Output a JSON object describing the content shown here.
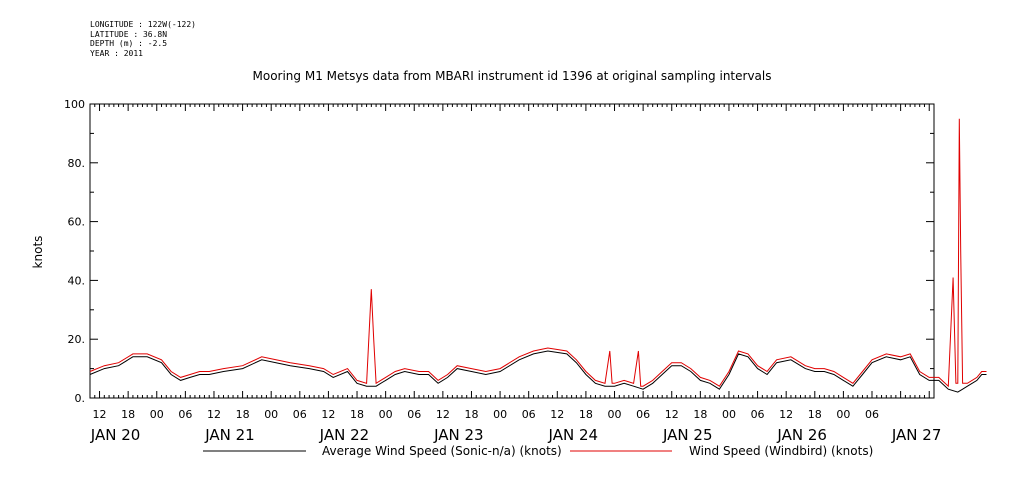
{
  "header": {
    "longitude": "LONGITUDE : 122W(-122)",
    "latitude": "LATITUDE : 36.8N",
    "depth": "DEPTH (m) : -2.5",
    "year": "YEAR : 2011"
  },
  "chart_data": {
    "type": "line",
    "title": "Mooring M1 Metsys data from MBARI instrument id 1396 at original sampling intervals",
    "ylabel": "knots",
    "xlabel": "",
    "ylim": [
      0,
      100
    ],
    "y_ticks": [
      "0.",
      "20.",
      "40.",
      "60.",
      "80.",
      "100"
    ],
    "x_range_hours": [
      -14,
      163
    ],
    "x_hour_ticks": [
      "12",
      "18",
      "00",
      "06",
      "12",
      "18",
      "00",
      "06",
      "12",
      "18",
      "00",
      "06",
      "12",
      "18",
      "00",
      "06",
      "12",
      "18",
      "00",
      "06",
      "12",
      "18",
      "00",
      "06",
      "12",
      "18",
      "00",
      "06"
    ],
    "x_day_labels": [
      "JAN 20",
      "JAN 21",
      "JAN 22",
      "JAN 23",
      "JAN 24",
      "JAN 25",
      "JAN 26",
      "JAN 27"
    ],
    "grid": false,
    "legend_position": "bottom",
    "series": [
      {
        "name": "Average Wind Speed (Sonic-n/a) (knots)",
        "color": "#000000",
        "points": [
          [
            -14,
            8
          ],
          [
            -11,
            10
          ],
          [
            -8,
            11
          ],
          [
            -5,
            14
          ],
          [
            -2,
            14
          ],
          [
            1,
            12
          ],
          [
            3,
            8
          ],
          [
            5,
            6
          ],
          [
            7,
            7
          ],
          [
            9,
            8
          ],
          [
            11,
            8
          ],
          [
            14,
            9
          ],
          [
            18,
            10
          ],
          [
            22,
            13
          ],
          [
            25,
            12
          ],
          [
            28,
            11
          ],
          [
            32,
            10
          ],
          [
            35,
            9
          ],
          [
            37,
            7
          ],
          [
            40,
            9
          ],
          [
            42,
            5
          ],
          [
            44,
            4
          ],
          [
            46,
            4
          ],
          [
            48,
            6
          ],
          [
            50,
            8
          ],
          [
            52,
            9
          ],
          [
            55,
            8
          ],
          [
            57,
            8
          ],
          [
            59,
            5
          ],
          [
            61,
            7
          ],
          [
            63,
            10
          ],
          [
            66,
            9
          ],
          [
            69,
            8
          ],
          [
            72,
            9
          ],
          [
            76,
            13
          ],
          [
            79,
            15
          ],
          [
            82,
            16
          ],
          [
            86,
            15
          ],
          [
            88,
            12
          ],
          [
            90,
            8
          ],
          [
            92,
            5
          ],
          [
            94,
            4
          ],
          [
            96,
            4
          ],
          [
            98,
            5
          ],
          [
            100,
            4
          ],
          [
            102,
            3
          ],
          [
            104,
            5
          ],
          [
            106,
            8
          ],
          [
            108,
            11
          ],
          [
            110,
            11
          ],
          [
            112,
            9
          ],
          [
            114,
            6
          ],
          [
            116,
            5
          ],
          [
            118,
            3
          ],
          [
            120,
            8
          ],
          [
            122,
            15
          ],
          [
            124,
            14
          ],
          [
            126,
            10
          ],
          [
            128,
            8
          ],
          [
            130,
            12
          ],
          [
            133,
            13
          ],
          [
            136,
            10
          ],
          [
            138,
            9
          ],
          [
            140,
            9
          ],
          [
            142,
            8
          ],
          [
            144,
            6
          ],
          [
            146,
            4
          ],
          [
            148,
            8
          ],
          [
            150,
            12
          ],
          [
            153,
            14
          ],
          [
            156,
            13
          ],
          [
            158,
            14
          ],
          [
            160,
            8
          ],
          [
            162,
            6
          ],
          [
            164,
            6
          ],
          [
            166,
            3
          ],
          [
            168,
            2
          ],
          [
            169,
            3
          ],
          [
            170,
            4
          ],
          [
            172,
            6
          ],
          [
            173,
            8
          ],
          [
            174,
            8
          ]
        ]
      },
      {
        "name": "Wind Speed (Windbird) (knots)",
        "color": "#e00000",
        "points": [
          [
            -14,
            9
          ],
          [
            -11,
            11
          ],
          [
            -8,
            12
          ],
          [
            -5,
            15
          ],
          [
            -2,
            15
          ],
          [
            1,
            13
          ],
          [
            3,
            9
          ],
          [
            5,
            7
          ],
          [
            7,
            8
          ],
          [
            9,
            9
          ],
          [
            11,
            9
          ],
          [
            14,
            10
          ],
          [
            18,
            11
          ],
          [
            22,
            14
          ],
          [
            25,
            13
          ],
          [
            28,
            12
          ],
          [
            32,
            11
          ],
          [
            35,
            10
          ],
          [
            37,
            8
          ],
          [
            40,
            10
          ],
          [
            42,
            6
          ],
          [
            44,
            5
          ],
          [
            45,
            37
          ],
          [
            45.5,
            20
          ],
          [
            46,
            5
          ],
          [
            48,
            7
          ],
          [
            50,
            9
          ],
          [
            52,
            10
          ],
          [
            55,
            9
          ],
          [
            57,
            9
          ],
          [
            59,
            6
          ],
          [
            61,
            8
          ],
          [
            63,
            11
          ],
          [
            66,
            10
          ],
          [
            69,
            9
          ],
          [
            72,
            10
          ],
          [
            76,
            14
          ],
          [
            79,
            16
          ],
          [
            82,
            17
          ],
          [
            86,
            16
          ],
          [
            88,
            13
          ],
          [
            90,
            9
          ],
          [
            92,
            6
          ],
          [
            94,
            5
          ],
          [
            95,
            16
          ],
          [
            95.5,
            5
          ],
          [
            96,
            5
          ],
          [
            98,
            6
          ],
          [
            100,
            5
          ],
          [
            101,
            16
          ],
          [
            101.5,
            4
          ],
          [
            102,
            4
          ],
          [
            104,
            6
          ],
          [
            106,
            9
          ],
          [
            108,
            12
          ],
          [
            110,
            12
          ],
          [
            112,
            10
          ],
          [
            114,
            7
          ],
          [
            116,
            6
          ],
          [
            118,
            4
          ],
          [
            120,
            9
          ],
          [
            122,
            16
          ],
          [
            124,
            15
          ],
          [
            126,
            11
          ],
          [
            128,
            9
          ],
          [
            130,
            13
          ],
          [
            133,
            14
          ],
          [
            136,
            11
          ],
          [
            138,
            10
          ],
          [
            140,
            10
          ],
          [
            142,
            9
          ],
          [
            144,
            7
          ],
          [
            146,
            5
          ],
          [
            148,
            9
          ],
          [
            150,
            13
          ],
          [
            153,
            15
          ],
          [
            156,
            14
          ],
          [
            158,
            15
          ],
          [
            160,
            9
          ],
          [
            162,
            7
          ],
          [
            164,
            7
          ],
          [
            166,
            4
          ],
          [
            167,
            41
          ],
          [
            167.3,
            23
          ],
          [
            167.6,
            5
          ],
          [
            168,
            5
          ],
          [
            168.3,
            95
          ],
          [
            168.6,
            50
          ],
          [
            169,
            5
          ],
          [
            170,
            5
          ],
          [
            172,
            7
          ],
          [
            173,
            9
          ],
          [
            174,
            9
          ]
        ]
      }
    ]
  }
}
